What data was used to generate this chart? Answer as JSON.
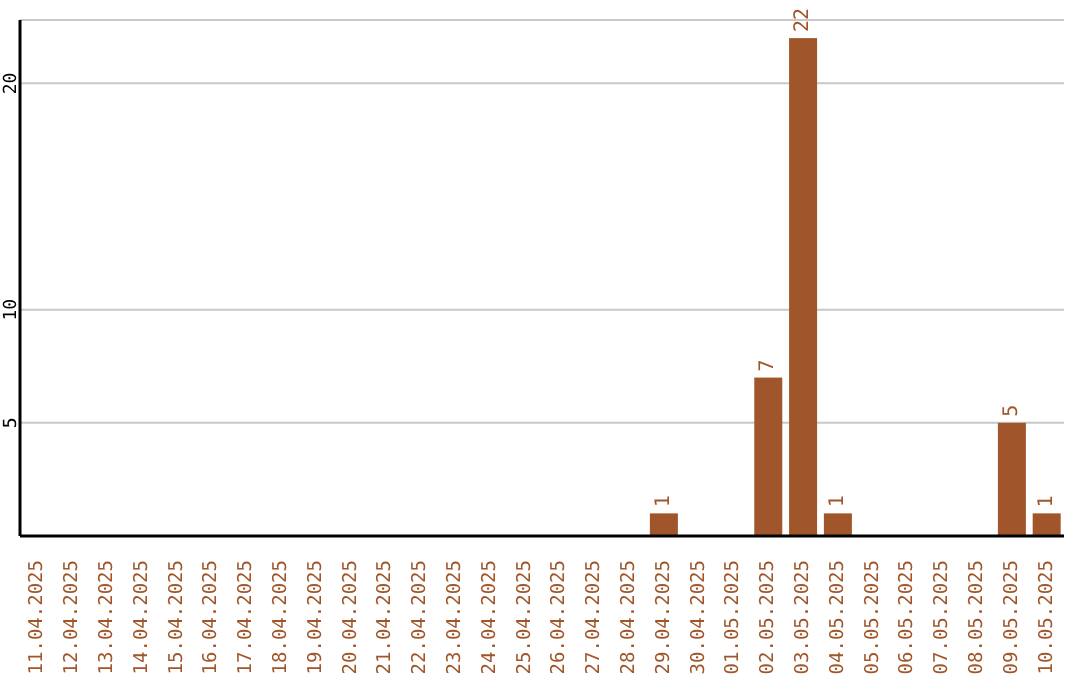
{
  "chart_data": {
    "type": "bar",
    "categories": [
      "11.04.2025",
      "12.04.2025",
      "13.04.2025",
      "14.04.2025",
      "15.04.2025",
      "16.04.2025",
      "17.04.2025",
      "18.04.2025",
      "19.04.2025",
      "20.04.2025",
      "21.04.2025",
      "22.04.2025",
      "23.04.2025",
      "24.04.2025",
      "25.04.2025",
      "26.04.2025",
      "27.04.2025",
      "28.04.2025",
      "29.04.2025",
      "30.04.2025",
      "01.05.2025",
      "02.05.2025",
      "03.05.2025",
      "04.05.2025",
      "05.05.2025",
      "06.05.2025",
      "07.05.2025",
      "08.05.2025",
      "09.05.2025",
      "10.05.2025"
    ],
    "values": [
      0,
      0,
      0,
      0,
      0,
      0,
      0,
      0,
      0,
      0,
      0,
      0,
      0,
      0,
      0,
      0,
      0,
      0,
      1,
      0,
      0,
      7,
      22,
      1,
      0,
      0,
      0,
      0,
      5,
      1
    ],
    "value_labels": [
      null,
      null,
      null,
      null,
      null,
      null,
      null,
      null,
      null,
      null,
      null,
      null,
      null,
      null,
      null,
      null,
      null,
      null,
      "1",
      null,
      null,
      "7",
      "22",
      "1",
      null,
      null,
      null,
      null,
      "5",
      "1"
    ],
    "color": "#a0562a",
    "ylim": [
      0,
      22.8
    ],
    "yticks": [
      5,
      10,
      20
    ],
    "grid": "y"
  }
}
